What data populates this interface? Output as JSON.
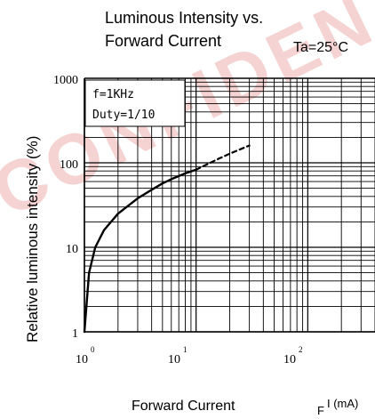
{
  "chart_data": {
    "type": "line",
    "title_line1": "Luminous Intensity vs.",
    "title_line2": "Forward Current",
    "condition": "Ta=25°C",
    "xlabel": "Forward Current",
    "xunit_prefix": "F",
    "xunit": "I (mA)",
    "ylabel": "Relative luminous intensity (%)",
    "x_scale": "log",
    "y_scale": "log",
    "xlim": [
      1,
      400
    ],
    "ylim": [
      1,
      1000
    ],
    "x_ticks": [
      {
        "base": "10",
        "exp": "0"
      },
      {
        "base": "10",
        "exp": "1"
      },
      {
        "base": "10",
        "exp": "2"
      }
    ],
    "y_ticks": [
      "1000",
      "100",
      "10",
      "1"
    ],
    "grid": true,
    "annotation_lines": [
      "f=1KHz",
      "Duty=1/10"
    ],
    "watermark": "CONFIDENTIAL",
    "watermark_color": "#f5cfcf",
    "series": [
      {
        "solid": true,
        "x": [
          1,
          1.1,
          1.25,
          1.5,
          2,
          3,
          4,
          5,
          6,
          8,
          10
        ],
        "y": [
          1,
          5,
          10,
          16,
          25,
          38,
          48,
          57,
          64,
          75,
          83
        ]
      },
      {
        "solid": false,
        "x": [
          10,
          13,
          16,
          20,
          25,
          30
        ],
        "y": [
          83,
          98,
          112,
          128,
          145,
          160
        ]
      }
    ]
  }
}
